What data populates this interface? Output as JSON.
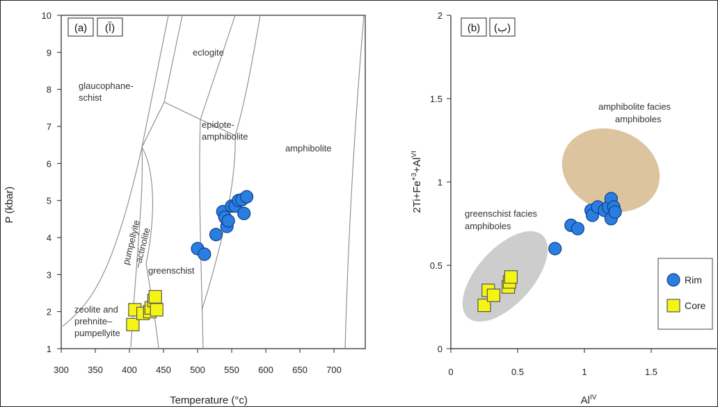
{
  "chart_data": [
    {
      "type": "scatter",
      "panel_label": "(a)",
      "panel_label_alt": "(آ)",
      "xlabel": "Temperature (°c)",
      "ylabel": "P (kbar)",
      "xlim": [
        300,
        750
      ],
      "ylim": [
        1,
        10
      ],
      "xticks": [
        "300",
        "350",
        "400",
        "450",
        "500",
        "550",
        "600",
        "650",
        "700"
      ],
      "yticks": [
        "1",
        "2",
        "3",
        "4",
        "5",
        "6",
        "7",
        "8",
        "9",
        "10"
      ],
      "fields": [
        "glaucophane-\nschist",
        "eclogite",
        "epidote-\namphibolite",
        "amphibolite",
        "pumpellyite\n–actinolite",
        "greenschist",
        "zeolite and\nprehnite–\npumpellyite"
      ],
      "series": [
        {
          "name": "Rim",
          "color": "#2b7de0",
          "marker": "circle",
          "points": [
            [
              500,
              3.7
            ],
            [
              510,
              3.55
            ],
            [
              527,
              4.08
            ],
            [
              537,
              4.7
            ],
            [
              540,
              4.55
            ],
            [
              543,
              4.3
            ],
            [
              545,
              4.45
            ],
            [
              550,
              4.85
            ],
            [
              555,
              4.85
            ],
            [
              560,
              5.0
            ],
            [
              565,
              5.02
            ],
            [
              568,
              4.65
            ],
            [
              572,
              5.1
            ]
          ]
        },
        {
          "name": "Core",
          "color": "#f5f513",
          "marker": "square",
          "points": [
            [
              405,
              1.65
            ],
            [
              408,
              2.05
            ],
            [
              420,
              1.95
            ],
            [
              430,
              2.0
            ],
            [
              432,
              2.1
            ],
            [
              436,
              2.3
            ],
            [
              438,
              2.4
            ],
            [
              440,
              2.05
            ]
          ]
        }
      ]
    },
    {
      "type": "scatter",
      "panel_label": "(b)",
      "panel_label_alt": "(ب)",
      "xlabel": "Al",
      "xlabel_sup": "IV",
      "ylabel": "2Ti+Fe",
      "ylabel_sup1": "+3",
      "ylabel_mid": "+Al",
      "ylabel_sup2": "VI",
      "xlim": [
        0,
        2
      ],
      "ylim": [
        0,
        2
      ],
      "xticks": [
        "0",
        "0.5",
        "1",
        "1.5"
      ],
      "yticks": [
        "0",
        "0.5",
        "1",
        "1.5",
        "2"
      ],
      "fields": [
        "amphibolite facies\namphiboles",
        "greenschist facies\namphiboles"
      ],
      "legend": {
        "position": "bottom-right",
        "entries": [
          "Rim",
          "Core"
        ]
      },
      "series": [
        {
          "name": "Rim",
          "color": "#2b7de0",
          "marker": "circle",
          "points": [
            [
              0.78,
              0.6
            ],
            [
              0.9,
              0.74
            ],
            [
              0.95,
              0.72
            ],
            [
              1.05,
              0.83
            ],
            [
              1.06,
              0.8
            ],
            [
              1.1,
              0.85
            ],
            [
              1.15,
              0.83
            ],
            [
              1.18,
              0.85
            ],
            [
              1.2,
              0.9
            ],
            [
              1.2,
              0.78
            ],
            [
              1.22,
              0.85
            ],
            [
              1.23,
              0.82
            ]
          ]
        },
        {
          "name": "Core",
          "color": "#f5f513",
          "marker": "square",
          "points": [
            [
              0.25,
              0.26
            ],
            [
              0.28,
              0.35
            ],
            [
              0.32,
              0.32
            ],
            [
              0.43,
              0.37
            ],
            [
              0.44,
              0.4
            ],
            [
              0.45,
              0.43
            ]
          ]
        }
      ]
    }
  ]
}
